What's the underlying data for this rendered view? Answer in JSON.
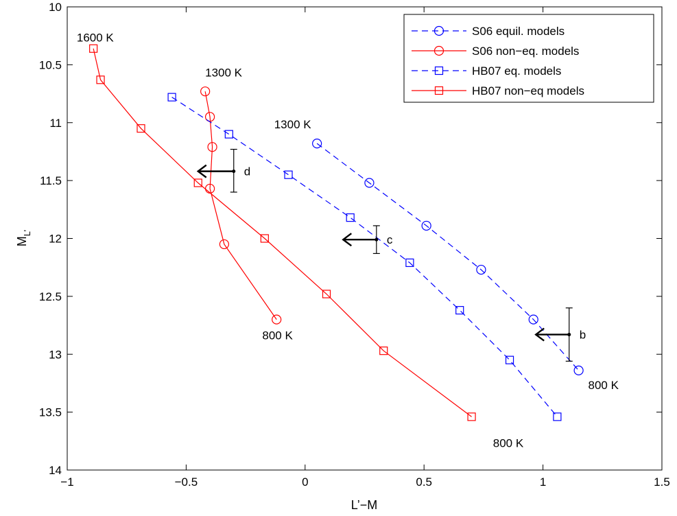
{
  "chart_data": {
    "type": "line",
    "xlabel": "L’−M",
    "ylabel_main": "M",
    "ylabel_sub": "L’",
    "xlim": [
      -1,
      1.5
    ],
    "ylim": [
      10,
      14
    ],
    "y_reversed": true,
    "x_ticks": [
      -1,
      -0.5,
      0,
      0.5,
      1,
      1.5
    ],
    "x_tick_labels": [
      "−1",
      "−0.5",
      "0",
      "0.5",
      "1",
      "1.5"
    ],
    "y_ticks": [
      10,
      10.5,
      11,
      11.5,
      12,
      12.5,
      13,
      13.5,
      14
    ],
    "y_tick_labels": [
      "10",
      "10.5",
      "11",
      "11.5",
      "12",
      "12.5",
      "13",
      "13.5",
      "14"
    ],
    "legend_position": "top-right",
    "series": [
      {
        "name": "S06 equil. models",
        "color": "#0000ff",
        "dashed": true,
        "marker": "circle",
        "x": [
          0.05,
          0.27,
          0.51,
          0.74,
          0.96,
          1.15
        ],
        "y": [
          11.18,
          11.52,
          11.89,
          12.27,
          12.7,
          13.14
        ]
      },
      {
        "name": "S06 non−eq. models",
        "color": "#ff0000",
        "dashed": false,
        "marker": "circle",
        "x": [
          -0.42,
          -0.4,
          -0.39,
          -0.4,
          -0.34,
          -0.12
        ],
        "y": [
          10.73,
          10.95,
          11.21,
          11.57,
          12.05,
          12.7
        ]
      },
      {
        "name": "HB07 eq. models",
        "color": "#0000ff",
        "dashed": true,
        "marker": "square",
        "x": [
          -0.56,
          -0.32,
          -0.07,
          0.19,
          0.44,
          0.65,
          0.86,
          1.06
        ],
        "y": [
          10.78,
          11.1,
          11.45,
          11.82,
          12.21,
          12.62,
          13.05,
          13.54
        ]
      },
      {
        "name": "HB07 non−eq models",
        "color": "#ff0000",
        "dashed": false,
        "marker": "square",
        "x": [
          -0.89,
          -0.86,
          -0.69,
          -0.45,
          -0.17,
          0.09,
          0.33,
          0.7
        ],
        "y": [
          10.36,
          10.63,
          11.05,
          11.52,
          12.0,
          12.48,
          12.97,
          13.54
        ]
      }
    ],
    "points": [
      {
        "label": "d",
        "x": -0.3,
        "y": 11.42,
        "err_low": 11.23,
        "err_high": 11.6,
        "arrow_to_x": -0.45
      },
      {
        "label": "c",
        "x": 0.3,
        "y": 12.01,
        "err_low": 11.89,
        "err_high": 12.13,
        "arrow_to_x": 0.16
      },
      {
        "label": "b",
        "x": 1.11,
        "y": 12.83,
        "err_low": 12.6,
        "err_high": 13.06,
        "arrow_to_x": 0.97
      }
    ],
    "annotations": [
      {
        "text": "1600 K",
        "x": -0.96,
        "y": 10.3
      },
      {
        "text": "1300 K",
        "x": -0.42,
        "y": 10.6
      },
      {
        "text": "1300 K",
        "x": -0.13,
        "y": 11.05
      },
      {
        "text": "800 K",
        "x": -0.18,
        "y": 12.87
      },
      {
        "text": "800 K",
        "x": 1.19,
        "y": 13.3
      },
      {
        "text": "800 K",
        "x": 0.79,
        "y": 13.8
      }
    ]
  }
}
